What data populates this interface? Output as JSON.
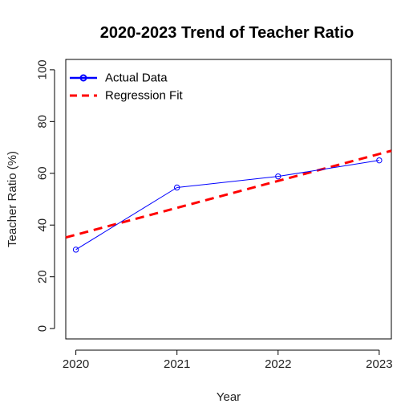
{
  "chart_data": {
    "type": "line",
    "title": "2020-2023 Trend of Teacher Ratio",
    "xlabel": "Year",
    "ylabel": "Teacher Ratio (%)",
    "x": [
      2020,
      2021,
      2022,
      2023
    ],
    "x_tick_labels": [
      "2020",
      "2021",
      "2022",
      "2023"
    ],
    "y_ticks": [
      0,
      20,
      40,
      60,
      80,
      100
    ],
    "y_tick_labels": [
      "0",
      "20",
      "40",
      "60",
      "80",
      "100"
    ],
    "xlim": [
      2019.9,
      2023.12
    ],
    "ylim": [
      -4,
      104
    ],
    "grid": false,
    "legend_position": "top-left",
    "series": [
      {
        "name": "Actual Data",
        "style": "line-with-circle-markers",
        "color": "#0000ff",
        "x": [
          2020,
          2021,
          2022,
          2023
        ],
        "values": [
          30.5,
          54.5,
          58.8,
          65
        ]
      },
      {
        "name": "Regression Fit",
        "style": "dashed-line",
        "color": "#ff0000",
        "x": [
          2019.9,
          2023.12
        ],
        "values": [
          35.2,
          68.7
        ]
      }
    ]
  }
}
